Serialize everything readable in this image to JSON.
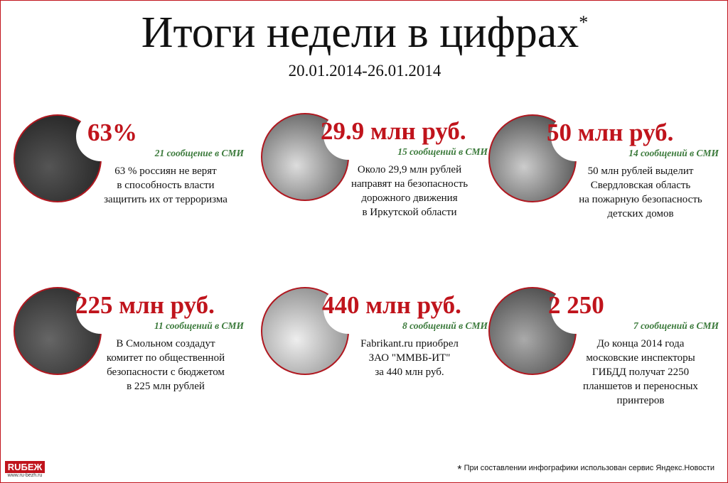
{
  "header": {
    "title": "Итоги недели в цифрах",
    "asterisk": "*",
    "date_range": "20.01.2014-26.01.2014"
  },
  "cards": [
    {
      "figure": "63%",
      "mentions": "21 сообщение в СМИ",
      "lines": [
        "63 % россиян не верят",
        "в способность власти",
        "защитить их от терроризма"
      ]
    },
    {
      "figure": "29.9 млн руб.",
      "mentions": "15 сообщений в СМИ",
      "lines": [
        "Около 29,9 млн рублей",
        "направят на безопасность",
        "дорожного движения",
        "в Иркутской области"
      ]
    },
    {
      "figure": "50 млн руб.",
      "mentions": "14 сообщений в СМИ",
      "lines": [
        "50 млн рублей выделит",
        "Свердловская область",
        "на пожарную безопасность",
        "детских домов"
      ]
    },
    {
      "figure": "225 млн руб.",
      "mentions": "11 сообщений в СМИ",
      "lines": [
        "В Смольном создадут",
        "комитет по общественной",
        "безопасности с бюджетом",
        "в 225 млн рублей"
      ]
    },
    {
      "figure": "440 млн руб.",
      "mentions": "8 сообщений в СМИ",
      "lines": [
        "Fabrikant.ru приобрел",
        "ЗАО \"ММВБ-ИТ\"",
        "за 440 млн руб."
      ]
    },
    {
      "figure": "2 250",
      "mentions": "7 сообщений в СМИ",
      "lines": [
        "До конца 2014 года",
        "московские инспекторы",
        "ГИБДД получат 2250",
        "планшетов и переносных",
        "принтеров"
      ]
    }
  ],
  "footnote": {
    "asterisk": "*",
    "text": "При составлении инфографики использован сервис Яндекс.Новости"
  },
  "logo": {
    "brand": "RUБЕЖ",
    "url": "www.ru-bezh.ru"
  }
}
